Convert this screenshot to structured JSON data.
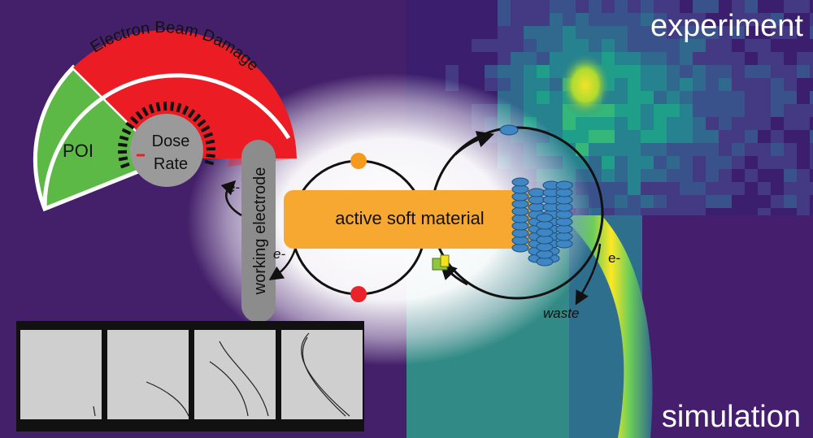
{
  "labels": {
    "experiment": "experiment",
    "simulation": "simulation",
    "beam_damage": "Electron Beam Damage",
    "poi": "POI",
    "dose": "Dose",
    "rate": "Rate",
    "working_electrode": "working electrode",
    "active_soft_material": "active soft material",
    "electron": "e-",
    "waste": "waste"
  },
  "gauge": {
    "regions": [
      "POI",
      "Electron Beam Damage"
    ],
    "colors": {
      "poi": "#5db946",
      "damage": "#ec1c24",
      "hub": "#9a9a9a"
    }
  },
  "colors": {
    "background": "#44206b",
    "material_box": "#f6a830",
    "electrode": "#8c8c8c",
    "cluster": "#3f86c4",
    "particle_orange": "#f39a1f",
    "particle_red": "#e8232a",
    "particle_blue": "#3f86c4",
    "particle_green": "#8dc63f"
  },
  "filmstrip": {
    "frames": 4
  }
}
